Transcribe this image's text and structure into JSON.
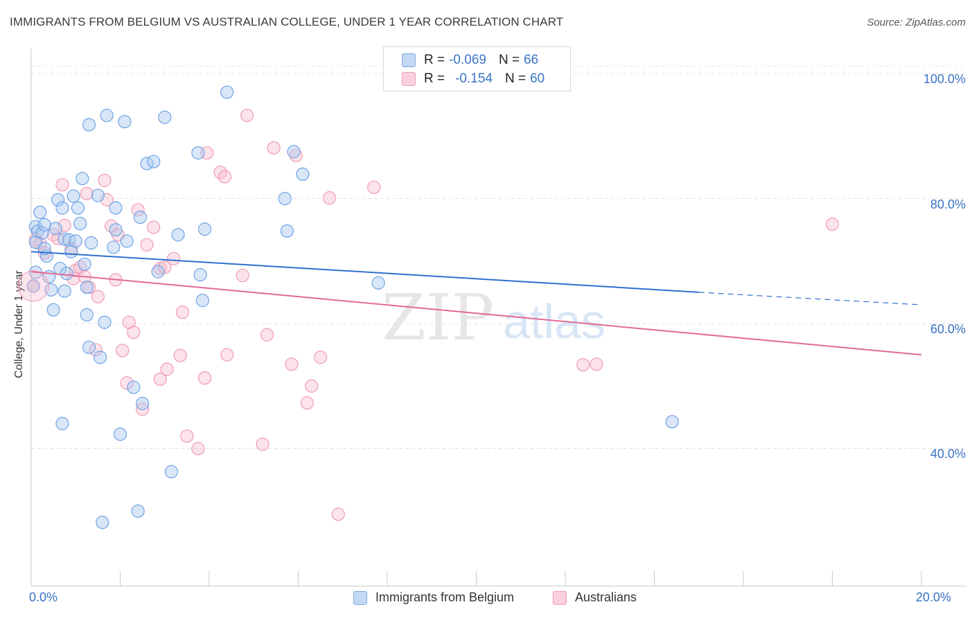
{
  "title": "IMMIGRANTS FROM BELGIUM VS AUSTRALIAN COLLEGE, UNDER 1 YEAR CORRELATION CHART",
  "source": "Source: ZipAtlas.com",
  "watermark": {
    "part1": "ZIP",
    "part2": "atlas"
  },
  "legend": {
    "rows": [
      {
        "r_label": "R =",
        "r_value": "-0.069",
        "n_label": "N =",
        "n_value": "66",
        "color": "#a9c8f0"
      },
      {
        "r_label": "R =",
        "r_value": "-0.154",
        "n_label": "N =",
        "n_value": "60",
        "color": "#f7b8cb"
      }
    ]
  },
  "bottom_legend": {
    "series1": "Immigrants from Belgium",
    "series2": "Australians"
  },
  "axis_labels": {
    "x_min": "0.0%",
    "x_max": "20.0%",
    "y_ticks": [
      "100.0%",
      "80.0%",
      "60.0%",
      "40.0%"
    ]
  },
  "chart_data": {
    "type": "scatter",
    "title": "IMMIGRANTS FROM BELGIUM VS AUSTRALIAN COLLEGE, UNDER 1 YEAR CORRELATION CHART",
    "xlabel": "",
    "ylabel": "College, Under 1 year",
    "xlim": [
      0,
      20
    ],
    "ylim": [
      18,
      104
    ],
    "y_ticks": [
      40,
      60,
      80,
      100
    ],
    "grid": true,
    "legend_position": "top-center",
    "series": [
      {
        "name": "Immigrants from Belgium",
        "color": "#6fa3e6",
        "trend": {
          "x": [
            0,
            15
          ],
          "y": [
            71.5,
            65.0
          ],
          "dashed_to": [
            20,
            63.0
          ],
          "color": "#2f6fce"
        },
        "points": [
          [
            0.1,
            75.5
          ],
          [
            0.1,
            73.0
          ],
          [
            0.15,
            74.8
          ],
          [
            0.2,
            77.8
          ],
          [
            0.25,
            74.5
          ],
          [
            0.3,
            75.8
          ],
          [
            0.35,
            70.8
          ],
          [
            0.4,
            67.5
          ],
          [
            0.45,
            65.4
          ],
          [
            0.5,
            62.2
          ],
          [
            0.55,
            75.2
          ],
          [
            0.6,
            79.8
          ],
          [
            0.65,
            68.8
          ],
          [
            0.7,
            78.5
          ],
          [
            0.7,
            44.0
          ],
          [
            0.75,
            73.5
          ],
          [
            0.75,
            65.2
          ],
          [
            0.8,
            68.0
          ],
          [
            0.85,
            73.4
          ],
          [
            0.9,
            71.5
          ],
          [
            0.95,
            80.4
          ],
          [
            1.0,
            73.2
          ],
          [
            1.05,
            78.5
          ],
          [
            1.1,
            76.0
          ],
          [
            1.15,
            83.2
          ],
          [
            1.2,
            69.5
          ],
          [
            1.25,
            65.8
          ],
          [
            1.25,
            61.4
          ],
          [
            1.3,
            56.2
          ],
          [
            1.3,
            91.8
          ],
          [
            1.35,
            72.9
          ],
          [
            1.5,
            80.5
          ],
          [
            1.55,
            54.6
          ],
          [
            1.6,
            28.2
          ],
          [
            1.65,
            60.2
          ],
          [
            1.7,
            93.3
          ],
          [
            1.85,
            72.2
          ],
          [
            1.9,
            75.0
          ],
          [
            1.9,
            78.5
          ],
          [
            2.0,
            42.3
          ],
          [
            2.1,
            92.3
          ],
          [
            2.15,
            73.2
          ],
          [
            2.3,
            49.8
          ],
          [
            2.4,
            30.0
          ],
          [
            2.45,
            77.0
          ],
          [
            2.5,
            47.2
          ],
          [
            2.6,
            85.6
          ],
          [
            2.75,
            85.9
          ],
          [
            2.85,
            68.3
          ],
          [
            3.0,
            93.0
          ],
          [
            3.15,
            36.3
          ],
          [
            3.3,
            74.2
          ],
          [
            3.75,
            87.3
          ],
          [
            3.8,
            67.8
          ],
          [
            3.85,
            63.7
          ],
          [
            3.9,
            75.1
          ],
          [
            4.4,
            97.0
          ],
          [
            5.7,
            80.0
          ],
          [
            5.75,
            74.8
          ],
          [
            5.9,
            87.5
          ],
          [
            6.1,
            83.9
          ],
          [
            7.8,
            66.5
          ],
          [
            14.4,
            44.3
          ],
          [
            0.05,
            66.0
          ],
          [
            0.1,
            68.2
          ],
          [
            0.3,
            72.0
          ]
        ]
      },
      {
        "name": "Australians",
        "color": "#f29bb6",
        "trend": {
          "x": [
            0,
            20
          ],
          "y": [
            68.3,
            55.0
          ],
          "color": "#e16b95"
        },
        "points": [
          [
            0.05,
            66.0
          ],
          [
            0.1,
            73.4
          ],
          [
            0.2,
            72.8
          ],
          [
            0.3,
            71.3
          ],
          [
            0.5,
            74.2
          ],
          [
            0.6,
            73.6
          ],
          [
            0.75,
            75.7
          ],
          [
            0.7,
            82.2
          ],
          [
            0.9,
            72.0
          ],
          [
            0.95,
            67.2
          ],
          [
            1.0,
            68.5
          ],
          [
            1.1,
            69.0
          ],
          [
            1.2,
            67.5
          ],
          [
            1.25,
            80.8
          ],
          [
            1.3,
            65.8
          ],
          [
            1.45,
            55.8
          ],
          [
            1.5,
            64.3
          ],
          [
            1.65,
            82.9
          ],
          [
            1.7,
            79.8
          ],
          [
            1.8,
            75.6
          ],
          [
            1.9,
            67.0
          ],
          [
            1.95,
            74.2
          ],
          [
            2.05,
            55.7
          ],
          [
            2.15,
            50.5
          ],
          [
            2.2,
            60.2
          ],
          [
            2.3,
            58.6
          ],
          [
            2.4,
            78.2
          ],
          [
            2.5,
            46.3
          ],
          [
            2.6,
            72.6
          ],
          [
            2.75,
            75.4
          ],
          [
            2.9,
            68.8
          ],
          [
            2.9,
            51.1
          ],
          [
            3.0,
            69.0
          ],
          [
            3.05,
            52.7
          ],
          [
            3.2,
            70.4
          ],
          [
            3.35,
            54.9
          ],
          [
            3.4,
            61.8
          ],
          [
            3.5,
            42.0
          ],
          [
            3.75,
            40.0
          ],
          [
            3.9,
            51.3
          ],
          [
            3.95,
            87.3
          ],
          [
            4.25,
            84.2
          ],
          [
            4.35,
            83.5
          ],
          [
            4.4,
            55.0
          ],
          [
            4.75,
            67.7
          ],
          [
            4.85,
            93.3
          ],
          [
            5.2,
            40.7
          ],
          [
            5.3,
            58.2
          ],
          [
            5.45,
            88.1
          ],
          [
            5.85,
            53.5
          ],
          [
            5.95,
            86.9
          ],
          [
            6.2,
            47.3
          ],
          [
            6.3,
            50.0
          ],
          [
            6.5,
            54.6
          ],
          [
            6.7,
            80.1
          ],
          [
            6.9,
            29.5
          ],
          [
            7.7,
            81.8
          ],
          [
            12.4,
            53.4
          ],
          [
            12.7,
            53.5
          ],
          [
            18.0,
            75.9
          ]
        ]
      }
    ]
  }
}
